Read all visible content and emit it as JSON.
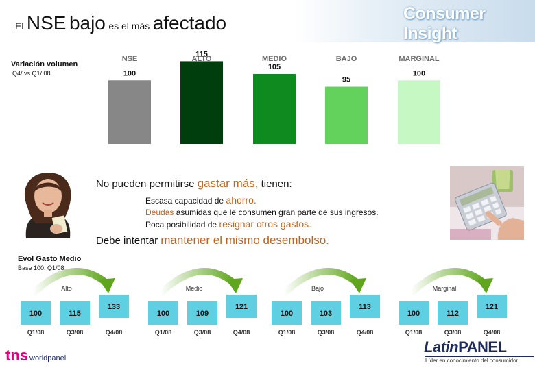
{
  "title": {
    "part1": "El",
    "part2": "NSE",
    "part3": "bajo",
    "part4": "es el más",
    "part5": "afectado"
  },
  "brand": "Consumer Insight",
  "chart_data": [
    {
      "type": "bar",
      "title": "Variación volumen",
      "subtitle": "Q4/ vs Q1/ 08",
      "categories": [
        "NSE",
        "ALTO",
        "MEDIO",
        "BAJO",
        "MARGINAL"
      ],
      "values": [
        100,
        115,
        105,
        95,
        100
      ],
      "colors": [
        "#878787",
        "#003f0d",
        "#0e8a1f",
        "#62d25c",
        "#c6f8c4"
      ]
    },
    {
      "type": "table",
      "title": "Evol Gasto Medio",
      "subtitle": "Base 100: Q1/08",
      "periods": [
        "Q1/08",
        "Q3/08",
        "Q4/08"
      ],
      "groups": [
        {
          "name": "Alto",
          "values": [
            100,
            115,
            133
          ]
        },
        {
          "name": "Medio",
          "values": [
            100,
            109,
            121
          ]
        },
        {
          "name": "Bajo",
          "values": [
            100,
            103,
            113
          ]
        },
        {
          "name": "Marginal",
          "values": [
            100,
            112,
            121
          ]
        }
      ],
      "box_color": "#5fd0e2",
      "arrow_color": "#5fa61c"
    }
  ],
  "statement": {
    "l1a": "No pueden permitirse",
    "l1b": "gastar más,",
    "l1c": "tienen:",
    "l2a": "Escasa capacidad de",
    "l2b": "ahorro.",
    "l3a": "Deudas",
    "l3b": "asumidas que le consumen gran parte de sus ingresos.",
    "l4a": "Poca posibilidad de",
    "l4b": "resignar otros gastos.",
    "l5a": "Debe intentar",
    "l5b": "mantener el mismo desembolso."
  },
  "footer": {
    "tns_a": "tns",
    "tns_b": "worldpanel",
    "latin_a": "Latin",
    "latin_b": "PANEL",
    "latin_tag": "Líder en conocimiento del consumidor"
  },
  "icons": {
    "photo_left": "woman-with-card-photo",
    "photo_right": "calculator-hand-photo"
  }
}
